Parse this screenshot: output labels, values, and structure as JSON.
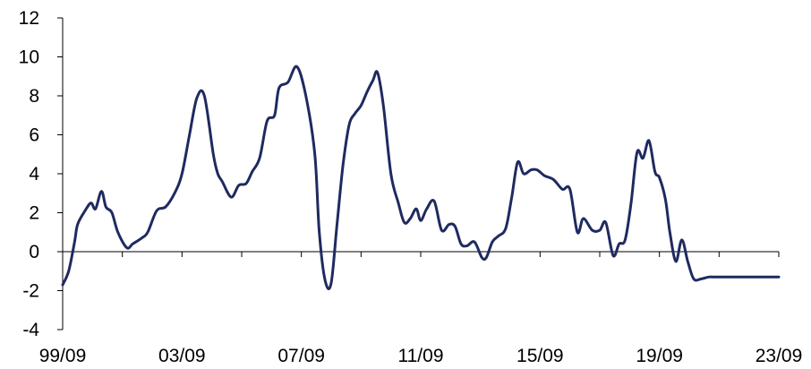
{
  "chart_data": {
    "type": "line",
    "title": "",
    "xlabel": "",
    "ylabel": "",
    "x_tick_labels": [
      "99/09",
      "03/09",
      "07/09",
      "11/09",
      "15/09",
      "19/09",
      "23/09"
    ],
    "x_tick_years": [
      1999.75,
      2003.75,
      2007.75,
      2011.75,
      2015.75,
      2019.75,
      2023.75
    ],
    "xlim": [
      1999.75,
      2023.75
    ],
    "y_tick_labels": [
      "12",
      "10",
      "8",
      "6",
      "4",
      "2",
      "0",
      "-2",
      "-4"
    ],
    "y_ticks": [
      12,
      10,
      8,
      6,
      4,
      2,
      0,
      -2,
      -4
    ],
    "ylim": [
      -4,
      12
    ],
    "grid": false,
    "legend": "none",
    "line_color": "#1f2a60",
    "series": [
      {
        "x": [
          1999.75,
          1999.95,
          2000.15,
          2000.25,
          2000.5,
          2000.7,
          2000.85,
          2001.05,
          2001.2,
          2001.4,
          2001.6,
          2001.9,
          2002.1,
          2002.4,
          2002.6,
          2002.9,
          2003.2,
          2003.5,
          2003.75,
          2004.0,
          2004.25,
          2004.5,
          2004.8,
          2004.95,
          2005.1,
          2005.4,
          2005.65,
          2005.9,
          2006.1,
          2006.35,
          2006.6,
          2006.85,
          2007.0,
          2007.3,
          2007.6,
          2007.9,
          2008.2,
          2008.35,
          2008.55,
          2008.75,
          2008.95,
          2009.15,
          2009.35,
          2009.55,
          2009.75,
          2009.95,
          2010.15,
          2010.3,
          2010.5,
          2010.75,
          2011.0,
          2011.2,
          2011.4,
          2011.6,
          2011.75,
          2011.95,
          2012.2,
          2012.45,
          2012.7,
          2012.9,
          2013.1,
          2013.3,
          2013.55,
          2013.8,
          2013.95,
          2014.15,
          2014.35,
          2014.6,
          2014.8,
          2015.0,
          2015.2,
          2015.45,
          2015.65,
          2015.9,
          2016.2,
          2016.5,
          2016.75,
          2017.0,
          2017.2,
          2017.5,
          2017.75,
          2017.95,
          2018.2,
          2018.4,
          2018.6,
          2018.8,
          2019.0,
          2019.2,
          2019.4,
          2019.6,
          2019.75,
          2019.95,
          2020.1,
          2020.3,
          2020.5,
          2020.7,
          2020.9,
          2021.15,
          2021.4,
          2021.55,
          2021.75,
          2021.9,
          2022.1,
          2022.35,
          2022.6,
          2022.85,
          2023.0,
          2023.2,
          2023.4,
          2023.6,
          2023.75
        ],
        "y": [
          -1.7,
          -1.0,
          0.5,
          1.4,
          2.1,
          2.5,
          2.2,
          3.1,
          2.3,
          2.0,
          1.0,
          0.2,
          0.4,
          0.7,
          1.0,
          2.1,
          2.3,
          3.0,
          4.0,
          6.0,
          7.9,
          8.0,
          5.0,
          4.0,
          3.6,
          2.8,
          3.4,
          3.5,
          4.1,
          4.8,
          6.7,
          7.0,
          8.4,
          8.7,
          9.5,
          8.0,
          5.0,
          1.0,
          -1.5,
          -1.6,
          1.5,
          4.5,
          6.5,
          7.1,
          7.5,
          8.2,
          8.8,
          9.2,
          7.5,
          4.0,
          2.5,
          1.5,
          1.7,
          2.2,
          1.6,
          2.2,
          2.6,
          1.1,
          1.4,
          1.3,
          0.4,
          0.3,
          0.5,
          -0.3,
          -0.3,
          0.5,
          0.8,
          1.2,
          2.8,
          4.6,
          4.0,
          4.2,
          4.2,
          3.9,
          3.7,
          3.2,
          3.2,
          1.0,
          1.7,
          1.1,
          1.1,
          1.5,
          -0.2,
          0.4,
          0.6,
          2.5,
          5.1,
          4.8,
          5.7,
          4.1,
          3.8,
          2.7,
          1.0,
          -0.5,
          0.6,
          -0.5,
          -1.4,
          -1.4,
          -1.3,
          -1.3,
          -1.3,
          -1.3,
          -1.3,
          -1.3,
          -1.3,
          -1.3,
          -1.3,
          -1.3,
          -1.3,
          -1.3,
          -1.3
        ]
      }
    ]
  }
}
